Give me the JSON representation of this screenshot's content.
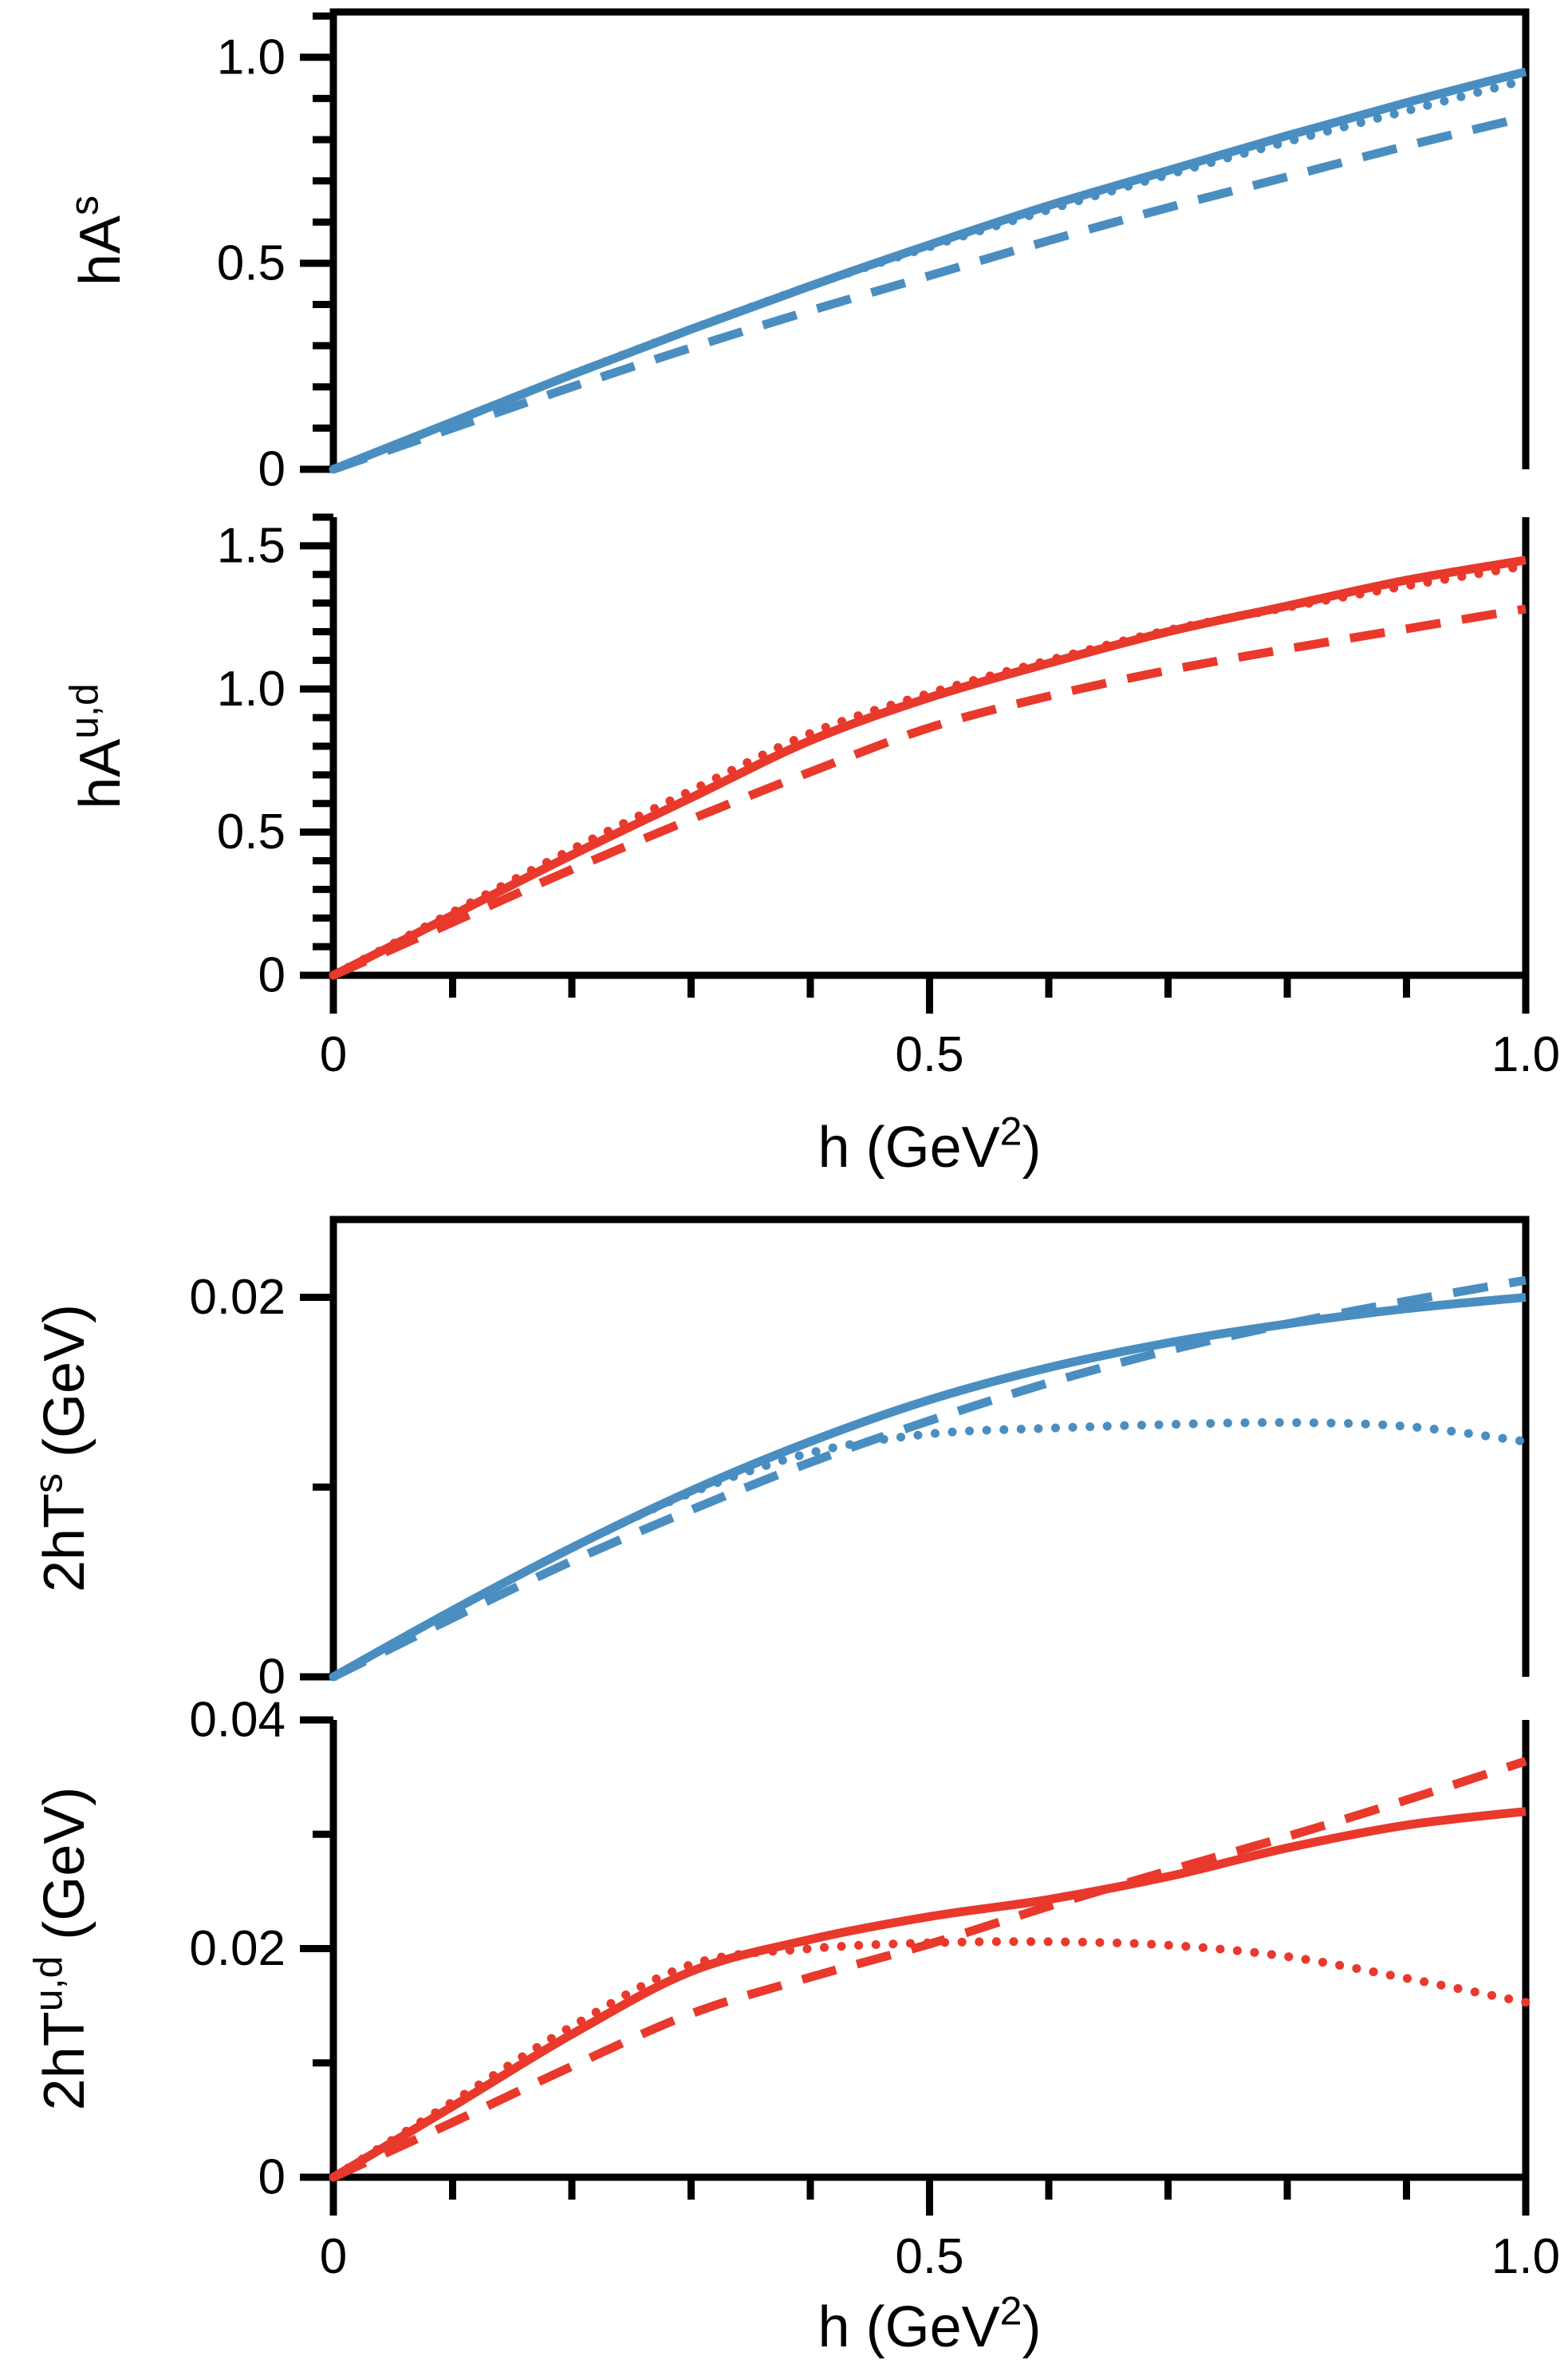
{
  "figure": {
    "background": "#ffffff",
    "colors": {
      "blue": "#4A8EC1",
      "red": "#E8392C",
      "axis": "#000000"
    },
    "shared_xlabel": {
      "base": "h (GeV",
      "sup": "2",
      "suffix": ")"
    },
    "xticks": {
      "major": [
        0,
        0.5,
        1.0
      ],
      "labels": [
        "0",
        "0.5",
        "1.0"
      ],
      "minor_step": 0.1
    }
  },
  "chart_data": [
    {
      "id": "hA_s",
      "type": "line",
      "title": "",
      "xlabel": "h (GeV^2)",
      "ylabel": "hA^s",
      "ylabel_rich": {
        "base": "hA",
        "sup": "s",
        "suffix": ""
      },
      "color": "#4A8EC1",
      "grid": false,
      "legend": "none",
      "xlim": [
        0,
        1.0
      ],
      "ylim": [
        0,
        1.11
      ],
      "yticks": [
        0,
        0.5,
        1.0
      ],
      "ytick_labels": [
        "0",
        "0.5",
        "1.0"
      ],
      "ytick_minor_step": 0.1,
      "has_x_axis": false,
      "x": [
        0,
        0.1,
        0.2,
        0.3,
        0.4,
        0.5,
        0.6,
        0.7,
        0.8,
        0.9,
        1.0
      ],
      "series": [
        {
          "name": "dashed",
          "style": "dashed",
          "values": [
            0,
            0.1,
            0.2,
            0.295,
            0.385,
            0.47,
            0.555,
            0.635,
            0.71,
            0.785,
            0.855
          ]
        },
        {
          "name": "solid",
          "style": "solid",
          "values": [
            0,
            0.115,
            0.23,
            0.34,
            0.445,
            0.545,
            0.64,
            0.725,
            0.81,
            0.89,
            0.965
          ]
        },
        {
          "name": "dotted",
          "style": "dotted",
          "values": [
            0,
            0.115,
            0.23,
            0.34,
            0.445,
            0.54,
            0.63,
            0.715,
            0.795,
            0.87,
            0.945
          ]
        }
      ]
    },
    {
      "id": "hA_ud",
      "type": "line",
      "title": "",
      "xlabel": "h (GeV^2)",
      "ylabel": "hA^u,d",
      "ylabel_rich": {
        "base": "hA",
        "sup": "u,d",
        "suffix": ""
      },
      "color": "#E8392C",
      "grid": false,
      "legend": "none",
      "xlim": [
        0,
        1.0
      ],
      "ylim": [
        0,
        1.6
      ],
      "yticks": [
        0,
        0.5,
        1.0,
        1.5
      ],
      "ytick_labels": [
        "0",
        "0.5",
        "1.0",
        "1.5"
      ],
      "ytick_minor_step": 0.1,
      "has_x_axis": true,
      "x": [
        0,
        0.1,
        0.2,
        0.3,
        0.4,
        0.5,
        0.6,
        0.7,
        0.8,
        0.9,
        1.0
      ],
      "series": [
        {
          "name": "dashed",
          "style": "dashed",
          "values": [
            0,
            0.185,
            0.37,
            0.545,
            0.71,
            0.865,
            0.975,
            1.065,
            1.14,
            1.21,
            1.28
          ]
        },
        {
          "name": "solid",
          "style": "solid",
          "values": [
            0,
            0.21,
            0.42,
            0.62,
            0.82,
            0.97,
            1.09,
            1.2,
            1.29,
            1.38,
            1.45
          ]
        },
        {
          "name": "dotted",
          "style": "dotted",
          "values": [
            0,
            0.22,
            0.44,
            0.645,
            0.845,
            0.985,
            1.1,
            1.205,
            1.285,
            1.36,
            1.43
          ]
        }
      ]
    },
    {
      "id": "2hT_s",
      "type": "line",
      "title": "",
      "xlabel": "h (GeV^2)",
      "ylabel": "2hT^s (GeV)",
      "ylabel_rich": {
        "base": "2hT",
        "sup": "s",
        "suffix": " (GeV)"
      },
      "color": "#4A8EC1",
      "grid": false,
      "legend": "none",
      "xlim": [
        0,
        1.0
      ],
      "ylim": [
        0,
        0.0241
      ],
      "yticks": [
        0,
        0.02
      ],
      "ytick_labels": [
        "0",
        "0.02"
      ],
      "ytick_minor_step": 0.01,
      "has_x_axis": false,
      "x": [
        0,
        0.1,
        0.2,
        0.3,
        0.4,
        0.5,
        0.6,
        0.7,
        0.8,
        0.9,
        1.0
      ],
      "series": [
        {
          "name": "dashed",
          "style": "dashed",
          "values": [
            0,
            0.0031,
            0.0061,
            0.0088,
            0.0113,
            0.0135,
            0.0155,
            0.0172,
            0.0186,
            0.0198,
            0.0209
          ]
        },
        {
          "name": "solid",
          "style": "solid",
          "values": [
            0,
            0.0035,
            0.0068,
            0.0098,
            0.0124,
            0.0146,
            0.0163,
            0.0176,
            0.0186,
            0.0194,
            0.02
          ]
        },
        {
          "name": "dotted",
          "style": "dotted",
          "values": [
            0,
            0.0035,
            0.0068,
            0.0097,
            0.0118,
            0.0128,
            0.0131,
            0.0133,
            0.0134,
            0.0132,
            0.0124
          ]
        }
      ]
    },
    {
      "id": "2hT_ud",
      "type": "line",
      "title": "",
      "xlabel": "h (GeV^2)",
      "ylabel": "2hT^u,d (GeV)",
      "ylabel_rich": {
        "base": "2hT",
        "sup": "u,d",
        "suffix": " (GeV)"
      },
      "color": "#E8392C",
      "grid": false,
      "legend": "none",
      "xlim": [
        0,
        1.0
      ],
      "ylim": [
        0,
        0.04
      ],
      "yticks": [
        0,
        0.02,
        0.04
      ],
      "ytick_labels": [
        "0",
        "0.02",
        "0.04"
      ],
      "ytick_minor_step": 0.01,
      "has_x_axis": true,
      "x": [
        0,
        0.1,
        0.2,
        0.3,
        0.4,
        0.5,
        0.6,
        0.7,
        0.8,
        0.9,
        1.0
      ],
      "series": [
        {
          "name": "dashed",
          "style": "dashed",
          "values": [
            0,
            0.0048,
            0.0097,
            0.0143,
            0.0175,
            0.0204,
            0.0237,
            0.0268,
            0.0298,
            0.033,
            0.0364
          ]
        },
        {
          "name": "solid",
          "style": "solid",
          "values": [
            0,
            0.0062,
            0.0125,
            0.018,
            0.0208,
            0.0228,
            0.0243,
            0.0263,
            0.0288,
            0.0308,
            0.032
          ]
        },
        {
          "name": "dotted",
          "style": "dotted",
          "values": [
            0,
            0.0066,
            0.0132,
            0.0186,
            0.02,
            0.0205,
            0.0206,
            0.0203,
            0.0193,
            0.0174,
            0.0153
          ]
        }
      ]
    }
  ]
}
